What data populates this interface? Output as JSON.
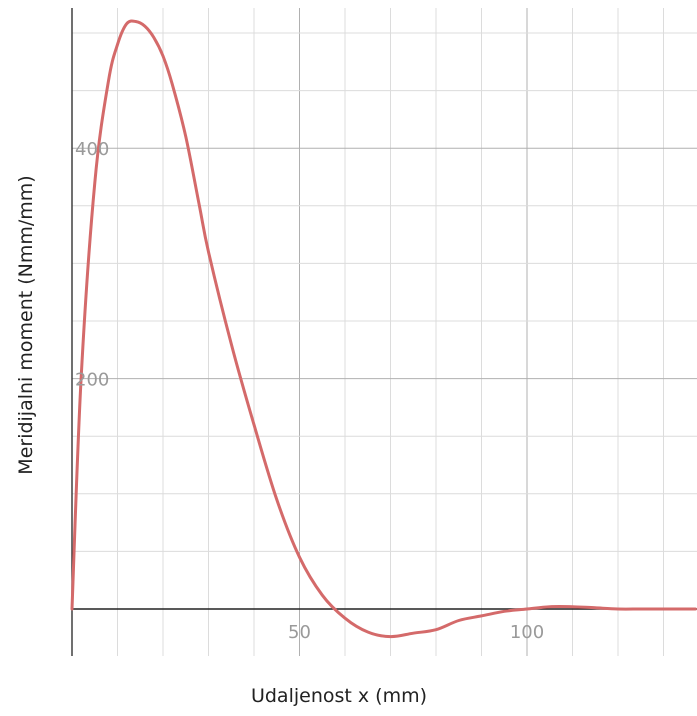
{
  "chart_data": {
    "type": "line",
    "xlabel": "Udaljenost x (mm)",
    "ylabel": "Meridijalni moment (Nmm/mm)",
    "xlim": [
      0,
      137
    ],
    "ylim": [
      -45,
      520
    ],
    "x_ticks": [
      {
        "value": 50,
        "label": "50"
      },
      {
        "value": 100,
        "label": "100"
      }
    ],
    "y_ticks": [
      {
        "value": 200,
        "label": "200"
      },
      {
        "value": 400,
        "label": "400"
      }
    ],
    "x_major_step": 50,
    "x_minor_step": 10,
    "y_major_step": 200,
    "y_minor_step": 50,
    "grid": true,
    "series": [
      {
        "color": "#d46a6a",
        "x": [
          0,
          2,
          5,
          8,
          10,
          12,
          14,
          16,
          18,
          20,
          22,
          25,
          28,
          30,
          35,
          40,
          45,
          50,
          55,
          60,
          65,
          70,
          75,
          80,
          85,
          90,
          95,
          100,
          105,
          110,
          115,
          120,
          125,
          130,
          135,
          137
        ],
        "y": [
          0,
          200,
          370,
          458,
          490,
          508,
          510,
          506,
          496,
          480,
          456,
          410,
          350,
          310,
          230,
          160,
          95,
          45,
          12,
          -8,
          -20,
          -24,
          -21,
          -18,
          -10,
          -6,
          -2,
          0,
          2,
          2,
          1,
          0,
          0,
          0,
          0,
          0
        ]
      }
    ]
  }
}
